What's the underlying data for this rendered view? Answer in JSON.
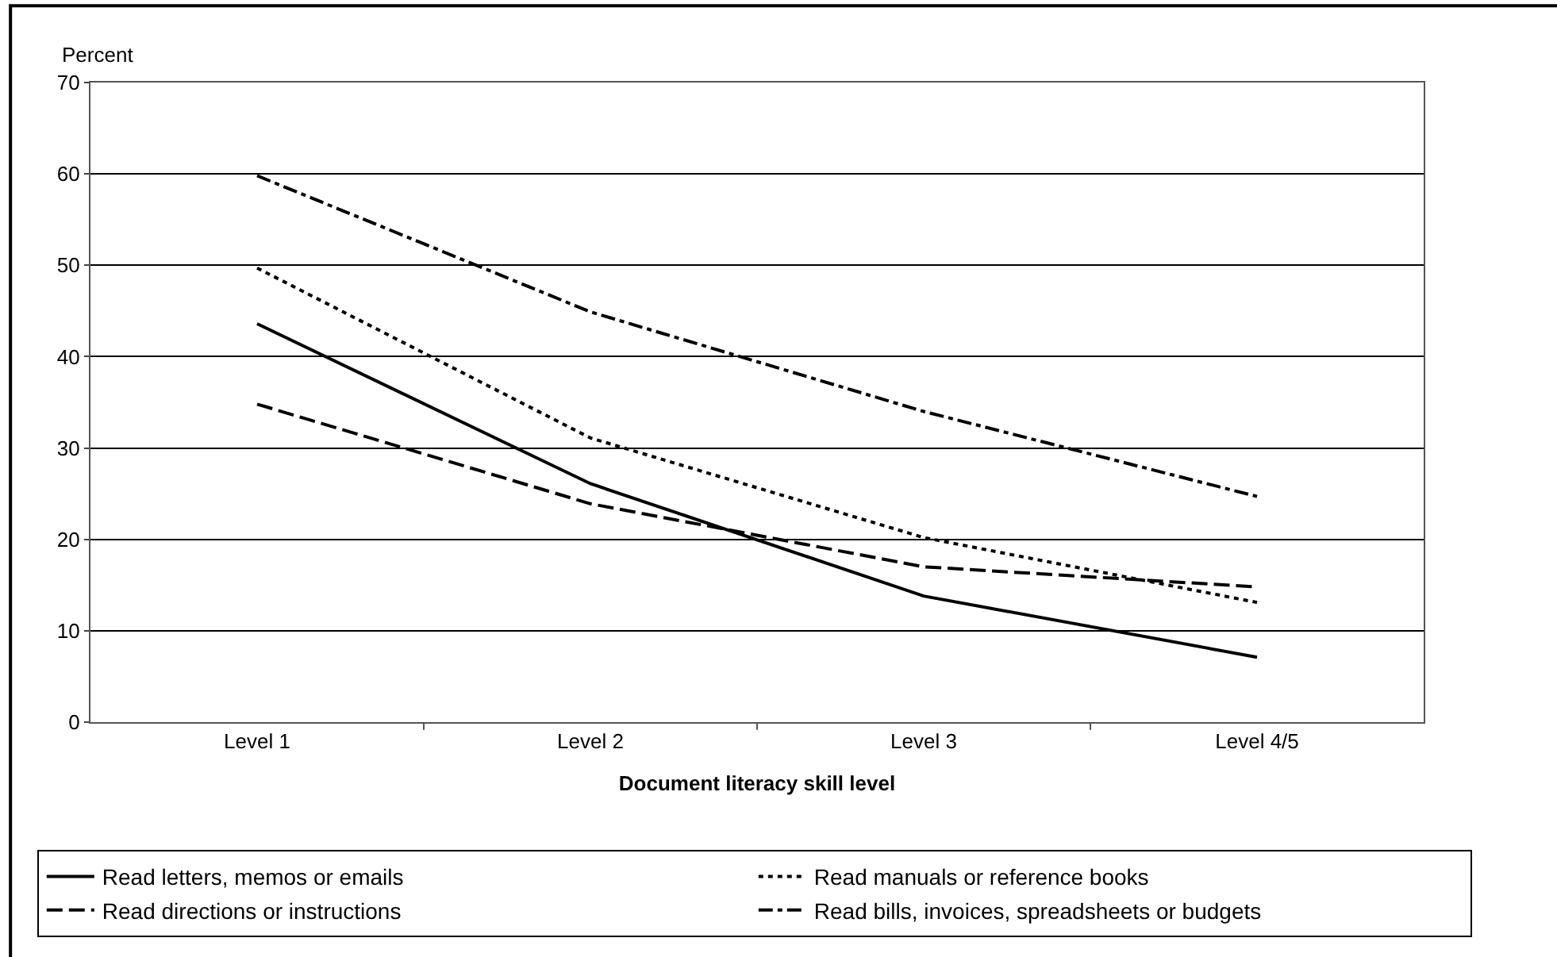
{
  "chart_data": {
    "type": "line",
    "ylabel": "Percent",
    "xlabel": "Document literacy skill level",
    "categories": [
      "Level 1",
      "Level 2",
      "Level 3",
      "Level 4/5"
    ],
    "series": [
      {
        "name": "Read letters, memos or emails",
        "color": "#000000",
        "line_style": "solid",
        "values": [
          43.6,
          26.1,
          13.8,
          7.1
        ]
      },
      {
        "name": "Read manuals or reference books",
        "color": "#000000",
        "line_style": "dotted",
        "values": [
          49.7,
          31.1,
          20.2,
          13.1
        ]
      },
      {
        "name": "Read directions or instructions",
        "color": "#000000",
        "line_style": "dashed",
        "values": [
          34.8,
          23.9,
          17.0,
          14.8
        ]
      },
      {
        "name": "Read bills, invoices, spreadsheets or budgets",
        "color": "#000000",
        "line_style": "dashdot",
        "values": [
          59.8,
          44.9,
          34.0,
          24.7
        ]
      }
    ],
    "ylim": [
      0,
      70
    ],
    "yticks": [
      0,
      10,
      20,
      30,
      40,
      50,
      60,
      70
    ],
    "grid": "y",
    "legend": "bottom",
    "marker": "none"
  }
}
